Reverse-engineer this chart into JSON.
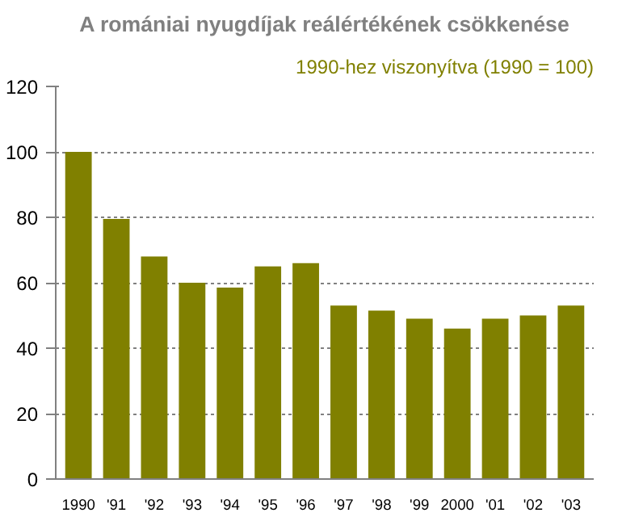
{
  "chart_data": {
    "type": "bar",
    "title": "A romániai nyugdíjak reálértékének csökkenése",
    "subtitle": "1990-hez viszonyítva (1990 = 100)",
    "categories": [
      "1990",
      "'91",
      "'92",
      "'93",
      "'94",
      "'95",
      "'96",
      "'97",
      "'98",
      "'99",
      "2000",
      "'01",
      "'02",
      "'03"
    ],
    "values": [
      100,
      79.5,
      68,
      60,
      58.5,
      65,
      66,
      53,
      51.5,
      49,
      46,
      49,
      50,
      53
    ],
    "color": "#808000",
    "ylim": [
      0,
      120
    ],
    "yticks": [
      0,
      20,
      40,
      60,
      80,
      100,
      120
    ],
    "grid": "y"
  }
}
